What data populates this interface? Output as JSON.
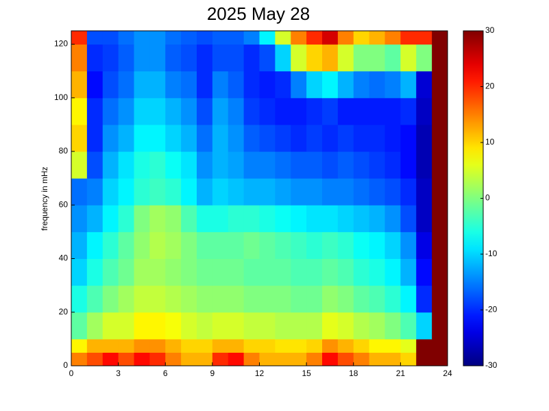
{
  "chart_data": {
    "type": "heatmap",
    "title": "2025 May 28",
    "y_label": "frequency in mHz",
    "x_bins": [
      0,
      1,
      2,
      3,
      4,
      5,
      6,
      7,
      8,
      9,
      10,
      11,
      12,
      13,
      14,
      15,
      16,
      17,
      18,
      19,
      20,
      21,
      22,
      23,
      24
    ],
    "y_bins": [
      0,
      5,
      10,
      20,
      30,
      40,
      50,
      60,
      70,
      80,
      90,
      100,
      110,
      120,
      125
    ],
    "z": [
      [
        15,
        18,
        22,
        18,
        22,
        20,
        15,
        12,
        12,
        20,
        22,
        15,
        12,
        12,
        12,
        15,
        22,
        18,
        15,
        12,
        12,
        10,
        30,
        30
      ],
      [
        8,
        12,
        12,
        12,
        14,
        14,
        12,
        10,
        10,
        12,
        12,
        10,
        10,
        9,
        9,
        10,
        14,
        12,
        10,
        8,
        8,
        6,
        30,
        30
      ],
      [
        -2,
        2,
        5,
        5,
        8,
        8,
        7,
        5,
        4,
        5,
        5,
        4,
        4,
        3,
        3,
        3,
        6,
        5,
        3,
        2,
        0,
        -3,
        -10,
        30
      ],
      [
        -6,
        -3,
        0,
        2,
        4,
        4,
        3,
        2,
        1,
        1,
        1,
        0,
        0,
        0,
        -1,
        -1,
        1,
        0,
        -2,
        -3,
        -5,
        -8,
        -20,
        30
      ],
      [
        -10,
        -6,
        -3,
        -1,
        2,
        2,
        1,
        0,
        -1,
        -1,
        -1,
        -2,
        -2,
        -2,
        -3,
        -3,
        -2,
        -3,
        -5,
        -6,
        -8,
        -12,
        -22,
        30
      ],
      [
        -12,
        -8,
        -5,
        -2,
        1,
        3,
        2,
        0,
        -2,
        -2,
        -2,
        -1,
        -2,
        -3,
        -4,
        -5,
        -4,
        -5,
        -7,
        -8,
        -10,
        -14,
        -24,
        30
      ],
      [
        -14,
        -12,
        -8,
        -5,
        0,
        2,
        1,
        -3,
        -6,
        -6,
        -5,
        -5,
        -6,
        -7,
        -8,
        -9,
        -9,
        -10,
        -11,
        -12,
        -14,
        -18,
        -26,
        30
      ],
      [
        -16,
        -15,
        -10,
        -8,
        -5,
        -4,
        -5,
        -8,
        -12,
        -10,
        -11,
        -12,
        -12,
        -13,
        -14,
        -14,
        -15,
        -15,
        -16,
        -17,
        -18,
        -20,
        -26,
        30
      ],
      [
        5,
        -18,
        -12,
        -9,
        -6,
        -5,
        -7,
        -9,
        -14,
        -12,
        -13,
        -15,
        -15,
        -16,
        -17,
        -17,
        -18,
        -17,
        -18,
        -19,
        -20,
        -22,
        -27,
        30
      ],
      [
        10,
        -20,
        -14,
        -12,
        -8,
        -8,
        -10,
        -12,
        -16,
        -12,
        -14,
        -17,
        -18,
        -19,
        -20,
        -19,
        -20,
        -19,
        -20,
        -20,
        -21,
        -22,
        -27,
        30
      ],
      [
        8,
        -20,
        -16,
        -14,
        -10,
        -10,
        -12,
        -14,
        -18,
        -13,
        -15,
        -19,
        -20,
        -21,
        -21,
        -20,
        -19,
        -21,
        -21,
        -21,
        -21,
        -20,
        -26,
        30
      ],
      [
        12,
        -22,
        -18,
        -16,
        -12,
        -12,
        -15,
        -16,
        -20,
        -15,
        -17,
        -20,
        -21,
        -20,
        -15,
        -10,
        -8,
        -12,
        -15,
        -16,
        -15,
        -12,
        -25,
        30
      ],
      [
        15,
        -20,
        -19,
        -17,
        -14,
        -14,
        -17,
        -18,
        -20,
        -18,
        -18,
        -20,
        -18,
        -10,
        5,
        10,
        12,
        5,
        0,
        0,
        -2,
        5,
        0,
        30
      ],
      [
        20,
        -18,
        -18,
        -16,
        -14,
        -14,
        -16,
        -17,
        -18,
        -17,
        -17,
        -15,
        -8,
        5,
        15,
        20,
        25,
        15,
        10,
        12,
        15,
        20,
        20,
        30
      ]
    ],
    "colormap": "jet",
    "xlim": [
      0,
      24
    ],
    "xticks": [
      0,
      3,
      6,
      9,
      12,
      15,
      18,
      21,
      24
    ],
    "ylim": [
      0,
      125
    ],
    "yticks": [
      0,
      20,
      40,
      60,
      80,
      100,
      120
    ],
    "clim": [
      -30,
      30
    ],
    "cticks": [
      -30,
      -20,
      -10,
      0,
      10,
      20,
      30
    ]
  }
}
